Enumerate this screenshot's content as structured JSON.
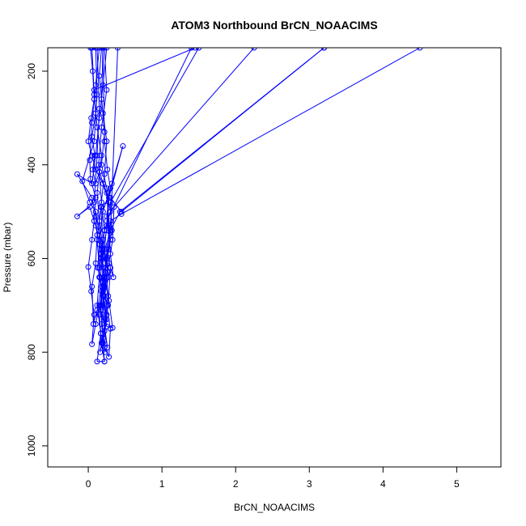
{
  "chart_data": {
    "type": "line",
    "title": "ATOM3 Northbound BrCN_NOAACIMS",
    "xlabel": "BrCN_NOAACIMS",
    "ylabel": "Pressure (mbar)",
    "xlim": [
      -0.55,
      5.6
    ],
    "ylim": [
      1045,
      150
    ],
    "y_reversed": true,
    "x_ticks": [
      0,
      1,
      2,
      3,
      4,
      5
    ],
    "x_tick_labels": [
      "0",
      "1",
      "2",
      "3",
      "4",
      "5"
    ],
    "y_ticks": [
      200,
      400,
      600,
      800,
      1000
    ],
    "y_tick_labels": [
      "200",
      "400",
      "600",
      "800",
      "1000"
    ],
    "grid": false,
    "legend": "none",
    "series": [
      {
        "color": "#0000ff",
        "markers": "open-circle",
        "points": [
          [
            0.05,
            150
          ],
          [
            0.08,
            250
          ],
          [
            0.12,
            320
          ],
          [
            0.18,
            380
          ],
          [
            0.12,
            460
          ],
          [
            0.15,
            520
          ],
          [
            0.2,
            580
          ],
          [
            0.15,
            640
          ],
          [
            0.12,
            700
          ],
          [
            0.17,
            760
          ],
          [
            0.12,
            820
          ],
          [
            0.22,
            820
          ],
          [
            0.18,
            780
          ],
          [
            0.25,
            720
          ],
          [
            0.2,
            680
          ],
          [
            0.28,
            640
          ],
          [
            0.23,
            600
          ],
          [
            0.3,
            560
          ],
          [
            0.25,
            520
          ],
          [
            1.4,
            150
          ],
          [
            0.15,
            150
          ],
          [
            0.1,
            230
          ],
          [
            0.05,
            310
          ],
          [
            0.02,
            390
          ],
          [
            0.03,
            430
          ],
          [
            0.1,
            470
          ],
          [
            0.08,
            520
          ],
          [
            0.05,
            560
          ],
          [
            0.0,
            618
          ],
          [
            0.04,
            670
          ],
          [
            0.08,
            720
          ],
          [
            0.05,
            783
          ],
          [
            0.1,
            740
          ],
          [
            0.15,
            700
          ],
          [
            0.22,
            660
          ],
          [
            0.28,
            610
          ],
          [
            0.33,
            560
          ],
          [
            0.35,
            490
          ],
          [
            2.25,
            150
          ],
          [
            0.2,
            150
          ],
          [
            0.18,
            260
          ],
          [
            0.22,
            330
          ],
          [
            0.18,
            400
          ],
          [
            0.25,
            450
          ],
          [
            0.3,
            500
          ],
          [
            0.22,
            540
          ],
          [
            0.17,
            600
          ],
          [
            0.2,
            650
          ],
          [
            0.25,
            700
          ],
          [
            0.3,
            750
          ],
          [
            0.28,
            810
          ],
          [
            0.22,
            790
          ],
          [
            0.18,
            740
          ],
          [
            0.22,
            680
          ],
          [
            0.3,
            620
          ],
          [
            0.25,
            580
          ],
          [
            0.3,
            520
          ],
          [
            0.45,
            505
          ],
          [
            4.5,
            150
          ],
          [
            0.25,
            150
          ],
          [
            0.2,
            230
          ],
          [
            0.15,
            300
          ],
          [
            0.1,
            380
          ],
          [
            0.05,
            440
          ],
          [
            -0.15,
            420
          ],
          [
            0.05,
            470
          ],
          [
            0.1,
            510
          ],
          [
            0.12,
            550
          ],
          [
            0.1,
            610
          ],
          [
            0.05,
            660
          ],
          [
            0.07,
            740
          ],
          [
            0.12,
            710
          ],
          [
            0.18,
            660
          ],
          [
            0.25,
            600
          ],
          [
            0.3,
            540
          ],
          [
            0.43,
            500
          ],
          [
            3.2,
            150
          ],
          [
            0.1,
            150
          ],
          [
            0.12,
            250
          ],
          [
            0.08,
            350
          ],
          [
            -0.08,
            435
          ],
          [
            0.02,
            480
          ],
          [
            0.1,
            500
          ],
          [
            0.15,
            540
          ],
          [
            0.18,
            580
          ],
          [
            0.15,
            620
          ],
          [
            0.2,
            660
          ],
          [
            0.17,
            710
          ],
          [
            0.2,
            770
          ],
          [
            0.23,
            800
          ],
          [
            0.2,
            760
          ],
          [
            0.17,
            700
          ],
          [
            0.22,
            640
          ],
          [
            0.28,
            580
          ],
          [
            0.32,
            540
          ],
          [
            0.3,
            480
          ],
          [
            1.5,
            150
          ],
          [
            0.12,
            150
          ],
          [
            0.15,
            280
          ],
          [
            0.12,
            380
          ],
          [
            0.08,
            480
          ],
          [
            -0.15,
            510
          ],
          [
            0.02,
            490
          ],
          [
            0.1,
            530
          ],
          [
            0.15,
            570
          ],
          [
            0.13,
            620
          ],
          [
            0.18,
            670
          ],
          [
            0.15,
            720
          ],
          [
            0.17,
            760
          ],
          [
            0.22,
            820
          ],
          [
            0.2,
            780
          ],
          [
            0.25,
            730
          ],
          [
            0.2,
            680
          ],
          [
            0.27,
            630
          ],
          [
            0.22,
            580
          ],
          [
            0.25,
            530
          ],
          [
            0.28,
            470
          ],
          [
            0.47,
            360
          ],
          [
            0.32,
            440
          ],
          [
            0.2,
            500
          ],
          [
            0.15,
            560
          ],
          [
            0.18,
            600
          ],
          [
            0.3,
            545
          ],
          [
            0.4,
            150
          ],
          [
            0.18,
            150
          ],
          [
            0.15,
            210
          ],
          [
            0.2,
            290
          ],
          [
            0.25,
            350
          ],
          [
            0.22,
            420
          ],
          [
            0.17,
            490
          ],
          [
            0.2,
            560
          ],
          [
            0.24,
            620
          ],
          [
            0.2,
            690
          ],
          [
            0.25,
            745
          ],
          [
            0.33,
            748
          ],
          [
            0.28,
            690
          ],
          [
            0.22,
            640
          ],
          [
            0.18,
            590
          ],
          [
            0.25,
            540
          ],
          [
            0.28,
            480
          ],
          [
            0.2,
            440
          ],
          [
            0.1,
            410
          ],
          [
            0.05,
            380
          ],
          [
            0.0,
            350
          ],
          [
            0.04,
            300
          ],
          [
            0.08,
            260
          ],
          [
            0.06,
            200
          ],
          [
            0.03,
            150
          ],
          [
            0.22,
            150
          ],
          [
            0.25,
            240
          ],
          [
            0.18,
            320
          ],
          [
            0.14,
            400
          ],
          [
            0.18,
            480
          ],
          [
            0.12,
            560
          ],
          [
            0.16,
            640
          ],
          [
            0.2,
            720
          ],
          [
            0.26,
            790
          ],
          [
            0.22,
            755
          ],
          [
            0.27,
            700
          ],
          [
            0.3,
            620
          ],
          [
            0.34,
            640
          ],
          [
            0.3,
            590
          ],
          [
            0.28,
            530
          ],
          [
            0.25,
            460
          ],
          [
            0.15,
            415
          ],
          [
            0.1,
            440
          ],
          [
            0.06,
            410
          ],
          [
            0.09,
            380
          ],
          [
            0.05,
            340
          ],
          [
            0.1,
            290
          ],
          [
            0.08,
            240
          ],
          [
            1.45,
            150
          ],
          [
            0.2,
            150
          ],
          [
            0.22,
            350
          ],
          [
            0.26,
            410
          ],
          [
            0.3,
            450
          ],
          [
            0.25,
            510
          ],
          [
            0.3,
            560
          ],
          [
            0.23,
            610
          ],
          [
            0.27,
            680
          ],
          [
            0.23,
            730
          ],
          [
            0.19,
            780
          ],
          [
            0.16,
            800
          ],
          [
            0.2,
            760
          ],
          [
            0.16,
            700
          ],
          [
            0.21,
            640
          ],
          [
            0.17,
            590
          ],
          [
            0.22,
            540
          ],
          [
            0.18,
            490
          ],
          [
            0.3,
            470
          ],
          [
            0.45,
            500
          ],
          [
            3.2,
            150
          ]
        ]
      }
    ]
  }
}
